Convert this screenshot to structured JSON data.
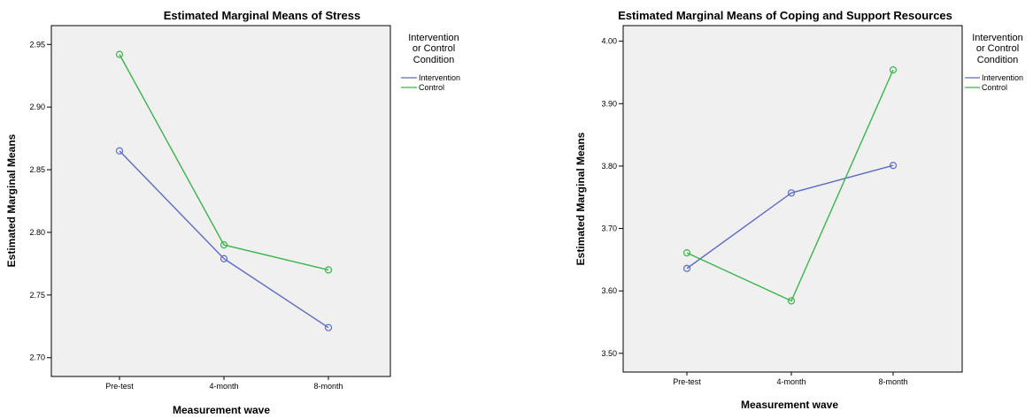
{
  "colors": {
    "intervention": "#5b6cc6",
    "control": "#39b54a",
    "plot_bg": "#f0f0f0"
  },
  "chart_data": [
    {
      "type": "line",
      "title": "Estimated Marginal Means of Stress",
      "xlabel": "Measurement wave",
      "ylabel": "Estimated Marginal Means",
      "categories": [
        "Pre-test",
        "4-month",
        "8-month"
      ],
      "ylim": [
        2.685,
        2.965
      ],
      "yticks": [
        "2.70",
        "2.75",
        "2.80",
        "2.85",
        "2.90",
        "2.95"
      ],
      "legend": {
        "title": [
          "Intervention",
          "or Control",
          "Condition"
        ],
        "position": "right"
      },
      "series": [
        {
          "name": "Intervention",
          "values": [
            2.865,
            2.779,
            2.724
          ]
        },
        {
          "name": "Control",
          "values": [
            2.942,
            2.79,
            2.77
          ]
        }
      ]
    },
    {
      "type": "line",
      "title": "Estimated Marginal Means of Coping and Support Resources",
      "xlabel": "Measurement wave",
      "ylabel": "Estimated Marginal Means",
      "categories": [
        "Pre-test",
        "4-month",
        "8-month"
      ],
      "ylim": [
        3.47,
        4.025
      ],
      "yticks": [
        "3.50",
        "3.60",
        "3.70",
        "3.80",
        "3.90",
        "4.00"
      ],
      "legend": {
        "title": [
          "Intervention",
          "or Control",
          "Condition"
        ],
        "position": "right"
      },
      "series": [
        {
          "name": "Intervention",
          "values": [
            3.636,
            3.757,
            3.801
          ]
        },
        {
          "name": "Control",
          "values": [
            3.661,
            3.584,
            3.954
          ]
        }
      ]
    }
  ]
}
